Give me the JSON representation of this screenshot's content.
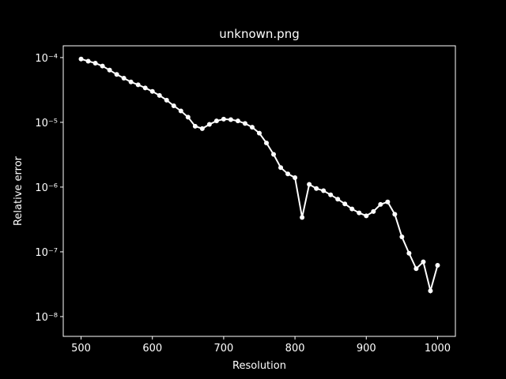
{
  "chart_data": {
    "type": "line",
    "title": "unknown.png",
    "xlabel": "Resolution",
    "ylabel": "Relative error",
    "log_y": true,
    "color": "#ffffff",
    "x": [
      500,
      510,
      520,
      530,
      540,
      550,
      560,
      570,
      580,
      590,
      600,
      610,
      620,
      630,
      640,
      650,
      660,
      670,
      680,
      690,
      700,
      710,
      720,
      730,
      740,
      750,
      760,
      770,
      780,
      790,
      800,
      810,
      820,
      830,
      840,
      850,
      860,
      870,
      880,
      890,
      900,
      910,
      920,
      930,
      940,
      950,
      960,
      970,
      980,
      990,
      1000
    ],
    "values": [
      9.5e-05,
      8.8e-05,
      8.2e-05,
      7.4e-05,
      6.4e-05,
      5.5e-05,
      4.8e-05,
      4.2e-05,
      3.8e-05,
      3.4e-05,
      3e-05,
      2.6e-05,
      2.2e-05,
      1.8e-05,
      1.5e-05,
      1.2e-05,
      8.7e-06,
      8e-06,
      9.3e-06,
      1.05e-05,
      1.12e-05,
      1.1e-05,
      1.05e-05,
      9.6e-06,
      8.4e-06,
      6.8e-06,
      4.8e-06,
      3.2e-06,
      2e-06,
      1.6e-06,
      1.4e-06,
      3.4e-07,
      1.1e-06,
      9.5e-07,
      8.8e-07,
      7.6e-07,
      6.5e-07,
      5.5e-07,
      4.6e-07,
      4e-07,
      3.6e-07,
      4.2e-07,
      5.4e-07,
      5.9e-07,
      3.8e-07,
      1.7e-07,
      9.5e-08,
      5.5e-08,
      7e-08,
      2.5e-08,
      6.2e-08
    ],
    "xlim": [
      475,
      1025
    ],
    "xticks": [
      500,
      600,
      700,
      800,
      900,
      1000
    ],
    "ylim": [
      4.95e-09,
      0.000152
    ],
    "yticks": [
      {
        "value": 1e-08,
        "label": "10⁻⁸"
      },
      {
        "value": 1e-07,
        "label": "10⁻⁷"
      },
      {
        "value": 1e-06,
        "label": "10⁻⁶"
      },
      {
        "value": 1e-05,
        "label": "10⁻⁵"
      },
      {
        "value": 0.0001,
        "label": "10⁻⁴"
      }
    ]
  }
}
